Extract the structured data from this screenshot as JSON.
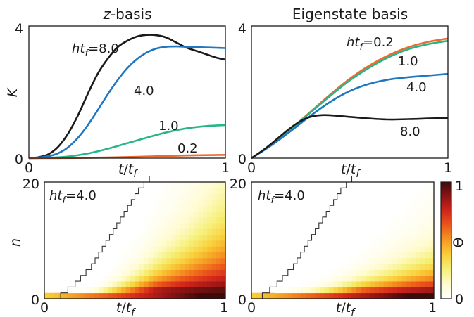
{
  "chart_data": [
    {
      "type": "line",
      "title": "z-basis",
      "xlabel": "t/t_f",
      "ylabel": "K",
      "xlim": [
        0,
        1
      ],
      "ylim": [
        0,
        4
      ],
      "xticks": [
        "0",
        "1"
      ],
      "yticks": [
        "0",
        "4"
      ],
      "grid": false,
      "series": [
        {
          "name": "ht_f=8.0",
          "label": "ht_f=8.0",
          "color": "#1a1a1a",
          "x": [
            0,
            0.05,
            0.1,
            0.15,
            0.2,
            0.25,
            0.3,
            0.35,
            0.4,
            0.45,
            0.5,
            0.55,
            0.6,
            0.65,
            0.7,
            0.75,
            0.8,
            0.85,
            0.9,
            0.95,
            1.0
          ],
          "y": [
            0,
            0.03,
            0.12,
            0.35,
            0.75,
            1.3,
            1.95,
            2.55,
            3.0,
            3.35,
            3.55,
            3.68,
            3.73,
            3.72,
            3.65,
            3.5,
            3.35,
            3.25,
            3.15,
            3.05,
            2.98
          ]
        },
        {
          "name": "ht_f=4.0",
          "label": "4.0",
          "color": "#1f77c2",
          "x": [
            0,
            0.05,
            0.1,
            0.15,
            0.2,
            0.25,
            0.3,
            0.35,
            0.4,
            0.45,
            0.5,
            0.55,
            0.6,
            0.65,
            0.7,
            0.75,
            0.8,
            0.85,
            0.9,
            0.95,
            1.0
          ],
          "y": [
            0,
            0.02,
            0.06,
            0.15,
            0.33,
            0.62,
            1.0,
            1.45,
            1.92,
            2.35,
            2.72,
            3.0,
            3.2,
            3.32,
            3.37,
            3.38,
            3.37,
            3.36,
            3.35,
            3.34,
            3.33
          ]
        },
        {
          "name": "ht_f=1.0",
          "label": "1.0",
          "color": "#2ab589",
          "x": [
            0,
            0.1,
            0.2,
            0.3,
            0.4,
            0.5,
            0.6,
            0.7,
            0.8,
            0.9,
            1.0
          ],
          "y": [
            0,
            0.01,
            0.05,
            0.14,
            0.28,
            0.45,
            0.62,
            0.78,
            0.9,
            0.97,
            1.0
          ]
        },
        {
          "name": "ht_f=0.2",
          "label": "0.2",
          "color": "#ef6a2e",
          "x": [
            0,
            0.2,
            0.4,
            0.6,
            0.8,
            1.0
          ],
          "y": [
            0,
            0.004,
            0.02,
            0.05,
            0.08,
            0.1
          ]
        }
      ]
    },
    {
      "type": "line",
      "title": "Eigenstate basis",
      "xlabel": "t/t_f",
      "ylabel": "",
      "xlim": [
        0,
        1
      ],
      "ylim": [
        0,
        4
      ],
      "xticks": [
        "0",
        "1"
      ],
      "yticks": [
        "0",
        "4"
      ],
      "grid": false,
      "series": [
        {
          "name": "ht_f=0.2",
          "label": "ht_f=0.2",
          "color": "#ef6a2e",
          "x": [
            0,
            0.1,
            0.2,
            0.3,
            0.4,
            0.5,
            0.6,
            0.7,
            0.8,
            0.9,
            1.0
          ],
          "y": [
            0,
            0.4,
            0.88,
            1.4,
            1.92,
            2.4,
            2.8,
            3.12,
            3.36,
            3.52,
            3.62
          ]
        },
        {
          "name": "ht_f=1.0",
          "label": "1.0",
          "color": "#2ab589",
          "x": [
            0,
            0.1,
            0.2,
            0.3,
            0.4,
            0.5,
            0.6,
            0.7,
            0.8,
            0.9,
            1.0
          ],
          "y": [
            0,
            0.4,
            0.87,
            1.38,
            1.88,
            2.35,
            2.74,
            3.06,
            3.3,
            3.45,
            3.55
          ]
        },
        {
          "name": "ht_f=4.0",
          "label": "4.0",
          "color": "#1f77c2",
          "x": [
            0,
            0.1,
            0.2,
            0.3,
            0.4,
            0.5,
            0.6,
            0.7,
            0.8,
            0.9,
            1.0
          ],
          "y": [
            0,
            0.38,
            0.82,
            1.28,
            1.7,
            2.03,
            2.25,
            2.38,
            2.45,
            2.5,
            2.55
          ]
        },
        {
          "name": "ht_f=8.0",
          "label": "8.0",
          "color": "#1a1a1a",
          "x": [
            0,
            0.05,
            0.1,
            0.15,
            0.2,
            0.25,
            0.3,
            0.35,
            0.4,
            0.5,
            0.6,
            0.7,
            0.8,
            0.9,
            1.0
          ],
          "y": [
            0,
            0.2,
            0.43,
            0.68,
            0.92,
            1.12,
            1.25,
            1.3,
            1.3,
            1.25,
            1.2,
            1.17,
            1.18,
            1.2,
            1.22
          ]
        }
      ]
    },
    {
      "type": "heatmap",
      "annotation": "ht_f=4.0",
      "xlabel": "t/t_f",
      "ylabel": "n",
      "xlim": [
        0,
        1
      ],
      "ylim": [
        0,
        20
      ],
      "xticks": [
        "0",
        "1"
      ],
      "yticks": [
        "0",
        "20"
      ],
      "staircase_x": [
        0.09,
        0.13,
        0.17,
        0.2,
        0.23,
        0.26,
        0.28,
        0.3,
        0.32,
        0.34,
        0.36,
        0.38,
        0.4,
        0.42,
        0.44,
        0.46,
        0.48,
        0.5,
        0.52,
        0.55,
        0.58
      ],
      "spread_rate": 42,
      "spread_offset": -0.8
    },
    {
      "type": "heatmap",
      "annotation": "ht_f=4.0",
      "xlabel": "t/t_f",
      "ylabel": "",
      "xlim": [
        0,
        1
      ],
      "ylim": [
        0,
        20
      ],
      "xticks": [
        "0",
        "1"
      ],
      "yticks": [
        "0",
        "20"
      ],
      "staircase_x": [
        0.06,
        0.1,
        0.14,
        0.17,
        0.2,
        0.23,
        0.25,
        0.27,
        0.29,
        0.31,
        0.33,
        0.35,
        0.37,
        0.39,
        0.41,
        0.43,
        0.45,
        0.47,
        0.49,
        0.52,
        0.55
      ],
      "spread_rate": 18,
      "spread_offset": 0.5
    }
  ],
  "colorbar": {
    "label": "Θ",
    "min_label": "0",
    "max_label": "1",
    "stops": [
      "#ffffff",
      "#fffbd0",
      "#f6f07a",
      "#f9cf3a",
      "#f59a22",
      "#ec5a1a",
      "#d2261b",
      "#8e1414",
      "#3e0b0b"
    ]
  }
}
